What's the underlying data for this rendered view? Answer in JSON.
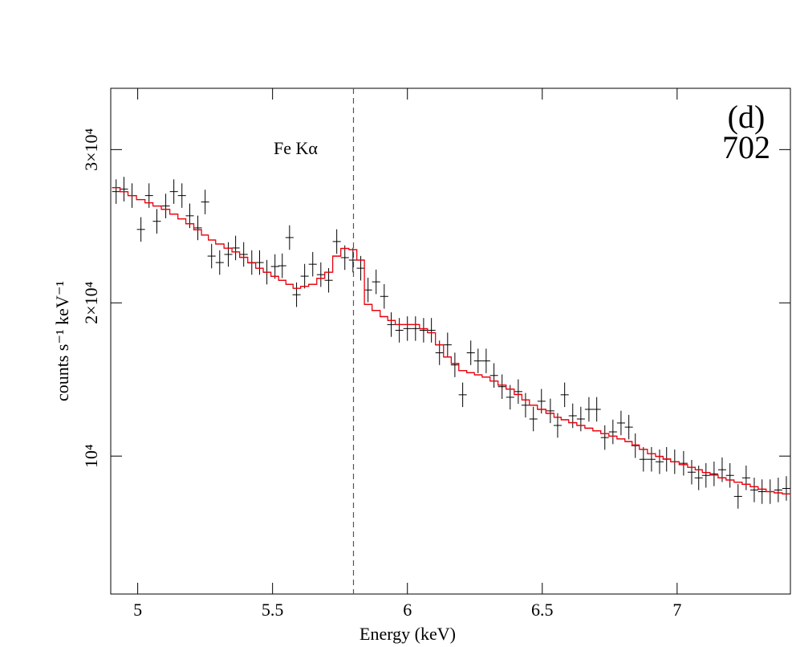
{
  "chart_data": {
    "type": "errorbar",
    "x_label": "Energy (keV)",
    "y_label": "counts s⁻¹ keV⁻¹",
    "annotations": [
      "(d)",
      "702"
    ],
    "reference_line": {
      "x": 5.8,
      "label": "Fe Kα"
    },
    "xlim": [
      4.9,
      7.42
    ],
    "ylim": [
      1000,
      34000
    ],
    "xticks": [
      5,
      5.5,
      6,
      6.5,
      7
    ],
    "yticks": [
      {
        "value": 10000,
        "label": "10⁴"
      },
      {
        "value": 20000,
        "label": "2×10⁴"
      },
      {
        "value": 30000,
        "label": "3×10⁴"
      }
    ],
    "x_error": 0.015,
    "y_error": 800,
    "x": [
      4.92,
      4.949,
      4.979,
      5.012,
      5.042,
      5.071,
      5.104,
      5.134,
      5.164,
      5.193,
      5.223,
      5.25,
      5.274,
      5.304,
      5.336,
      5.363,
      5.393,
      5.423,
      5.452,
      5.479,
      5.509,
      5.536,
      5.563,
      5.589,
      5.619,
      5.649,
      5.679,
      5.708,
      5.738,
      5.768,
      5.798,
      5.827,
      5.854,
      5.884,
      5.914,
      5.94,
      5.97,
      6.0,
      6.03,
      6.06,
      6.089,
      6.119,
      6.149,
      6.176,
      6.205,
      6.235,
      6.262,
      6.292,
      6.321,
      6.351,
      6.381,
      6.411,
      6.438,
      6.467,
      6.497,
      6.53,
      6.557,
      6.583,
      6.613,
      6.643,
      6.673,
      6.702,
      6.732,
      6.762,
      6.792,
      6.821,
      6.845,
      6.875,
      6.905,
      6.935,
      6.961,
      6.991,
      7.024,
      7.054,
      7.08,
      7.107,
      7.137,
      7.167,
      7.196,
      7.226,
      7.256,
      7.286,
      7.315,
      7.345,
      7.375,
      7.405
    ],
    "series": [
      {
        "color": "#000000",
        "style": "errorbar",
        "values": [
          27260,
          27420,
          27000,
          24790,
          27000,
          25320,
          26320,
          27260,
          27000,
          25680,
          24890,
          26580,
          23050,
          22630,
          23160,
          23580,
          23160,
          22630,
          22630,
          22000,
          22370,
          22420,
          24260,
          20530,
          21740,
          22520,
          21840,
          21470,
          24000,
          22950,
          22790,
          22260,
          20840,
          21370,
          20420,
          18580,
          18210,
          18320,
          18320,
          18210,
          18210,
          16740,
          17260,
          15950,
          14000,
          16740,
          16210,
          16210,
          15260,
          14530,
          13840,
          14210,
          13320,
          12420,
          13580,
          12950,
          12000,
          14000,
          12630,
          12420,
          13050,
          13050,
          11210,
          11580,
          12160,
          11890,
          10680,
          9790,
          9790,
          9630,
          9790,
          9630,
          9530,
          8950,
          8580,
          8740,
          8840,
          9110,
          8740,
          7370,
          8580,
          7790,
          7680,
          7680,
          7790,
          7890
        ]
      },
      {
        "color": "#e8000b",
        "style": "step",
        "values": [
          27520,
          27250,
          27000,
          26740,
          26530,
          26320,
          26100,
          25790,
          25480,
          25160,
          24770,
          24420,
          24100,
          23840,
          23570,
          23320,
          22970,
          22610,
          22260,
          22000,
          21730,
          21470,
          21210,
          20950,
          21080,
          21210,
          21600,
          22000,
          23050,
          23550,
          23470,
          22790,
          19900,
          19500,
          19100,
          18850,
          18580,
          18580,
          18580,
          18310,
          18050,
          17260,
          16470,
          16050,
          15580,
          15440,
          15300,
          15160,
          14900,
          14630,
          14370,
          14020,
          13670,
          13320,
          13050,
          12790,
          12530,
          12370,
          12180,
          12000,
          11820,
          11650,
          11470,
          11300,
          11120,
          10950,
          10720,
          10440,
          10160,
          9980,
          9810,
          9630,
          9440,
          9270,
          9110,
          8930,
          8760,
          8580,
          8440,
          8300,
          8160,
          8000,
          7840,
          7680,
          7600,
          7530
        ]
      }
    ]
  }
}
